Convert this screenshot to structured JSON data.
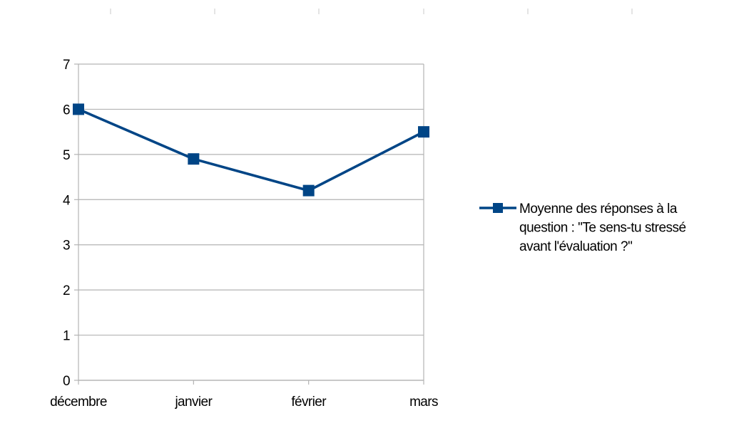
{
  "chart_data": {
    "type": "line",
    "categories": [
      "décembre",
      "janvier",
      "février",
      "mars"
    ],
    "series": [
      {
        "name": "Moyenne des réponses à la question : \"Te sens-tu stressé avant l'évaluation ?\"",
        "name_lines": [
          "Moyenne des réponses à la",
          "question : \"Te sens-tu stressé",
          "avant l'évaluation ?\""
        ],
        "values": [
          6,
          4.9,
          4.2,
          5.5
        ],
        "color": "#004586",
        "marker": "square"
      }
    ],
    "title": "",
    "xlabel": "",
    "ylabel": "",
    "ylim": [
      0,
      7
    ],
    "yticks": [
      0,
      1,
      2,
      3,
      4,
      5,
      6,
      7
    ],
    "grid": true,
    "legend": "right"
  },
  "colors": {
    "gridline": "#b3b3b3",
    "axis": "#b3b3b3",
    "series": "#004586"
  }
}
